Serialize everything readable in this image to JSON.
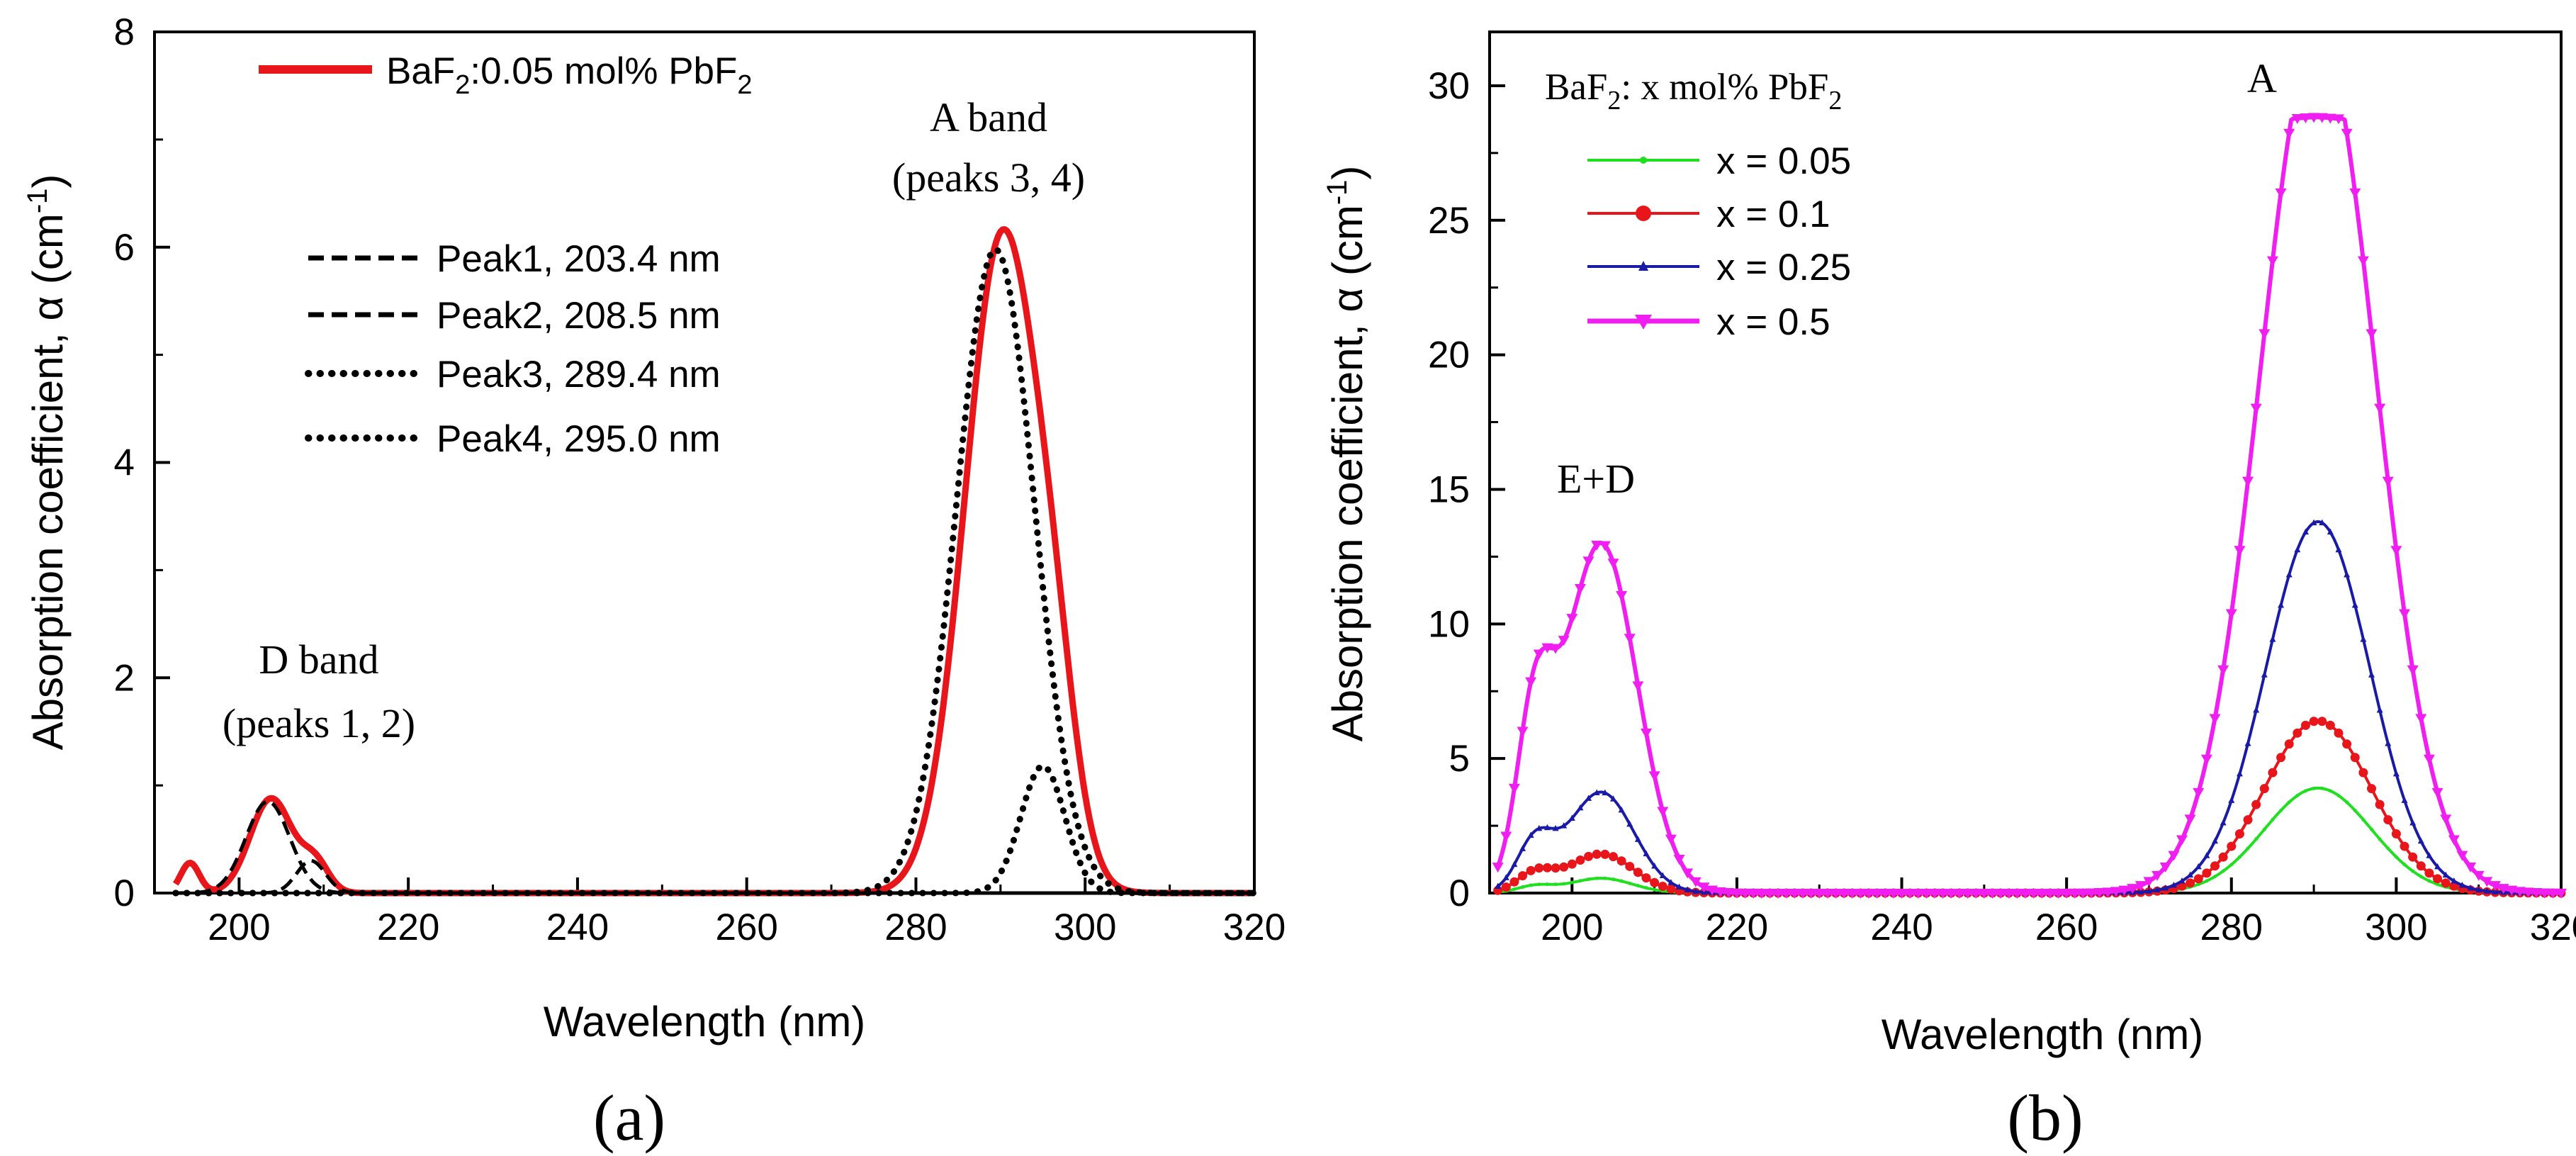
{
  "chart_data": [
    {
      "panel_label": "(a)",
      "type": "line",
      "xlabel": "Wavelength (nm)",
      "ylabel": "Absorption coefficient, α (cm⁻¹)",
      "xlim": [
        190,
        320
      ],
      "ylim": [
        0,
        8
      ],
      "xticks": [
        200,
        220,
        240,
        260,
        280,
        300,
        320
      ],
      "yticks": [
        0,
        2,
        4,
        6,
        8
      ],
      "legend_title": "",
      "annotations": [
        {
          "lines": [
            "D band",
            "(peaks 1, 2)"
          ],
          "anchor_x": 204,
          "anchor_y": 2.1
        },
        {
          "lines": [
            "A band",
            "(peaks 3, 4)"
          ],
          "anchor_x": 290,
          "anchor_y": 7.0
        }
      ],
      "series": [
        {
          "name": "BaF₂:0.05 mol% PbF₂",
          "color": "#e8161b",
          "style": "solid",
          "kind": "sum",
          "components": [
            {
              "a": 0.28,
              "c": 194.2,
              "s": 1.1
            },
            {
              "a": 0.88,
              "c": 203.8,
              "s": 2.5
            },
            {
              "a": 0.27,
              "c": 209,
              "s": 1.6
            },
            {
              "a": 6.1,
              "c": 290.2,
              "s": 4.4
            },
            {
              "a": 1.05,
              "c": 296.4,
              "s": 2.6
            }
          ]
        },
        {
          "name": "Peak1, 203.4 nm",
          "color": "#000000",
          "style": "dashed",
          "kind": "gauss",
          "a": 0.85,
          "c": 203.4,
          "s": 2.6
        },
        {
          "name": "Peak2, 208.5 nm",
          "color": "#000000",
          "style": "dashed",
          "kind": "gauss",
          "a": 0.3,
          "c": 208.5,
          "s": 1.7
        },
        {
          "name": "Peak3, 289.4 nm",
          "color": "#000000",
          "style": "dotted",
          "kind": "gauss",
          "a": 5.98,
          "c": 289.4,
          "s": 4.6
        },
        {
          "name": "Peak4, 295.0 nm",
          "color": "#000000",
          "style": "dotted",
          "kind": "gauss",
          "a": 1.18,
          "c": 295.0,
          "s": 2.6
        }
      ]
    },
    {
      "panel_label": "(b)",
      "type": "line",
      "xlabel": "Wavelength (nm)",
      "ylabel": "Absorption coefficient, α (cm⁻¹)",
      "xlim": [
        190,
        320
      ],
      "ylim": [
        0,
        32
      ],
      "xticks": [
        200,
        220,
        240,
        260,
        280,
        300,
        320
      ],
      "yticks": [
        0,
        5,
        10,
        15,
        20,
        25,
        30
      ],
      "legend_title": "BaF₂: x mol% PbF₂",
      "annotations": [
        {
          "lines": [
            "E+D"
          ],
          "anchor_x": 203,
          "anchor_y": 15.4
        },
        {
          "lines": [
            "A"
          ],
          "anchor_x": 290.5,
          "anchor_y": 31.0
        }
      ],
      "series": [
        {
          "name": "x = 0.05",
          "color": "#1ee01e",
          "marker": "dot",
          "kind": "sum",
          "components": [
            {
              "a": 0.25,
              "c": 195.5,
              "s": 2.2
            },
            {
              "a": 0.55,
              "c": 203.5,
              "s": 3.8
            },
            {
              "a": 3.9,
              "c": 290.5,
              "s": 6.5
            }
          ]
        },
        {
          "name": "x = 0.1",
          "color": "#e8161b",
          "marker": "circle",
          "kind": "sum",
          "components": [
            {
              "a": 0.7,
              "c": 195.5,
              "s": 2.2
            },
            {
              "a": 1.45,
              "c": 203.5,
              "s": 4.0
            },
            {
              "a": 6.4,
              "c": 290.5,
              "s": 6.5
            }
          ]
        },
        {
          "name": "x = 0.25",
          "color": "#1a1aa8",
          "marker": "triangle-up",
          "kind": "sum",
          "components": [
            {
              "a": 1.8,
              "c": 195.5,
              "s": 2.2
            },
            {
              "a": 3.75,
              "c": 203.5,
              "s": 4.0
            },
            {
              "a": 13.8,
              "c": 290.5,
              "s": 6.3
            }
          ]
        },
        {
          "name": "x = 0.5",
          "color": "#f01ef0",
          "marker": "triangle-down",
          "kind": "sum",
          "clip": 28.8,
          "components": [
            {
              "a": 6.0,
              "c": 195.5,
              "s": 2.2
            },
            {
              "a": 13.0,
              "c": 203.5,
              "s": 4.4
            },
            {
              "a": 32.0,
              "c": 290.5,
              "s": 7.0
            }
          ]
        }
      ]
    }
  ],
  "legend_a": {
    "main_label_base": "BaF",
    "main_label_sub1": "2",
    "main_label_mid": ":0.05 mol% PbF",
    "main_label_sub2": "2",
    "peak_labels": [
      "Peak1, 203.4 nm",
      "Peak2, 208.5 nm",
      "Peak3, 289.4 nm",
      "Peak4, 295.0 nm"
    ]
  },
  "legend_b": {
    "title_base": "BaF",
    "title_sub1": "2",
    "title_mid": ": x mol% PbF",
    "title_sub2": "2",
    "items": [
      "x = 0.05",
      "x = 0.1",
      "x = 0.25",
      "x = 0.5"
    ]
  },
  "ylabel_parts": {
    "main": "Absorption coefficient, α (cm",
    "sup": "-1",
    "close": ")"
  }
}
